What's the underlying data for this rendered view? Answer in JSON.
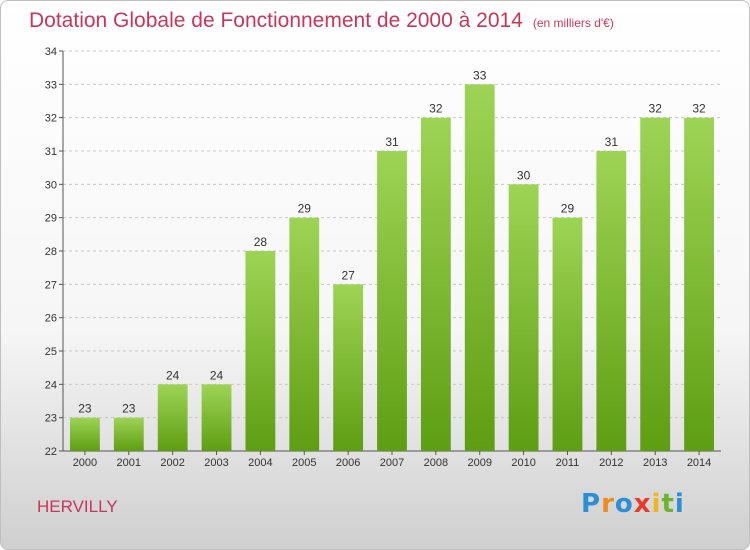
{
  "title": "Dotation Globale de Fonctionnement de 2000 à 2014",
  "subtitle": "(en milliers d'€)",
  "commune": "HERVILLY",
  "logo": {
    "text": "Proxiti",
    "letters": [
      {
        "ch": "P",
        "color": "#2a8fd6"
      },
      {
        "ch": "r",
        "color": "#f08a1c"
      },
      {
        "ch": "o",
        "color": "#2a8fd6"
      },
      {
        "ch": "x",
        "color": "#e83a2a"
      },
      {
        "ch": "i",
        "color": "#f0b41c"
      },
      {
        "ch": "t",
        "color": "#6bb52b"
      },
      {
        "ch": "i",
        "color": "#2a8fd6"
      }
    ]
  },
  "colors": {
    "title": "#c8365a",
    "bar_top": "#9ed455",
    "bar_bottom": "#5e9e12",
    "grid": "#c8c8c8"
  },
  "chart_data": {
    "type": "bar",
    "categories": [
      "2000",
      "2001",
      "2002",
      "2003",
      "2004",
      "2005",
      "2006",
      "2007",
      "2008",
      "2009",
      "2010",
      "2011",
      "2012",
      "2013",
      "2014"
    ],
    "values": [
      23,
      23,
      24,
      24,
      28,
      29,
      27,
      31,
      32,
      33,
      30,
      29,
      31,
      32,
      32
    ],
    "ylim": [
      22,
      34
    ],
    "yticks": [
      22,
      23,
      24,
      25,
      26,
      27,
      28,
      29,
      30,
      31,
      32,
      33,
      34
    ],
    "grid": true,
    "data_labels": true
  }
}
